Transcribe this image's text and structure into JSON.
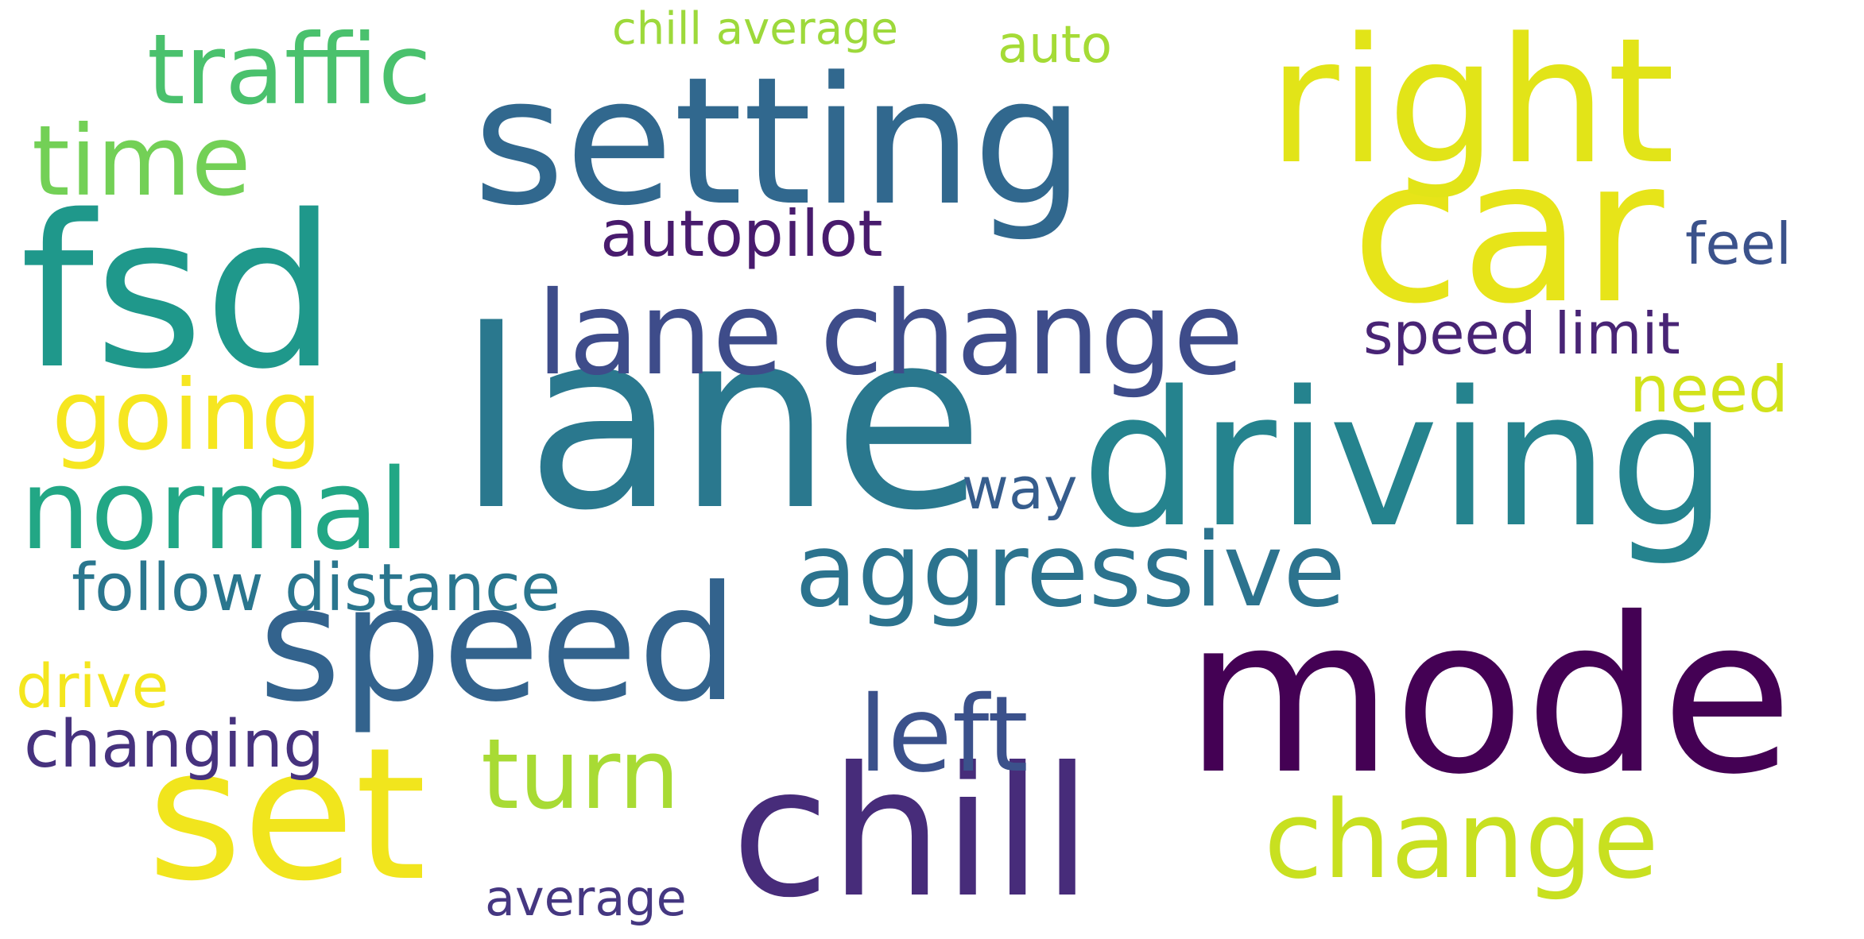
{
  "words": [
    {
      "text": "lane",
      "color": "#2a788e"
    },
    {
      "text": "driving",
      "color": "#25838e"
    },
    {
      "text": "fsd",
      "color": "#1f988b"
    },
    {
      "text": "mode",
      "color": "#440154"
    },
    {
      "text": "setting",
      "color": "#31688e"
    },
    {
      "text": "car",
      "color": "#e7e419"
    },
    {
      "text": "right",
      "color": "#e2e418"
    },
    {
      "text": "chill",
      "color": "#472c7a"
    },
    {
      "text": "speed",
      "color": "#33638d"
    },
    {
      "text": "set",
      "color": "#f1e51d"
    },
    {
      "text": "lane change",
      "color": "#3e4c8a"
    },
    {
      "text": "aggressive",
      "color": "#2c738e"
    },
    {
      "text": "change",
      "color": "#c8e020"
    },
    {
      "text": "normal",
      "color": "#22a785"
    },
    {
      "text": "turn",
      "color": "#a8db34"
    },
    {
      "text": "left",
      "color": "#3b518b"
    },
    {
      "text": "traffic",
      "color": "#4ac16d"
    },
    {
      "text": "going",
      "color": "#f6e620"
    },
    {
      "text": "time",
      "color": "#73d056"
    },
    {
      "text": "follow distance",
      "color": "#2a768e"
    },
    {
      "text": "changing",
      "color": "#46327e"
    },
    {
      "text": "autopilot",
      "color": "#481b6d"
    },
    {
      "text": "speed limit",
      "color": "#482475"
    },
    {
      "text": "need",
      "color": "#d2e21b"
    },
    {
      "text": "feel",
      "color": "#3b528b"
    },
    {
      "text": "drive",
      "color": "#f4e61e"
    },
    {
      "text": "way",
      "color": "#365d8d"
    },
    {
      "text": "average",
      "color": "#453781"
    },
    {
      "text": "auto",
      "color": "#a5db36"
    },
    {
      "text": "chill average",
      "color": "#9dd93b"
    }
  ]
}
